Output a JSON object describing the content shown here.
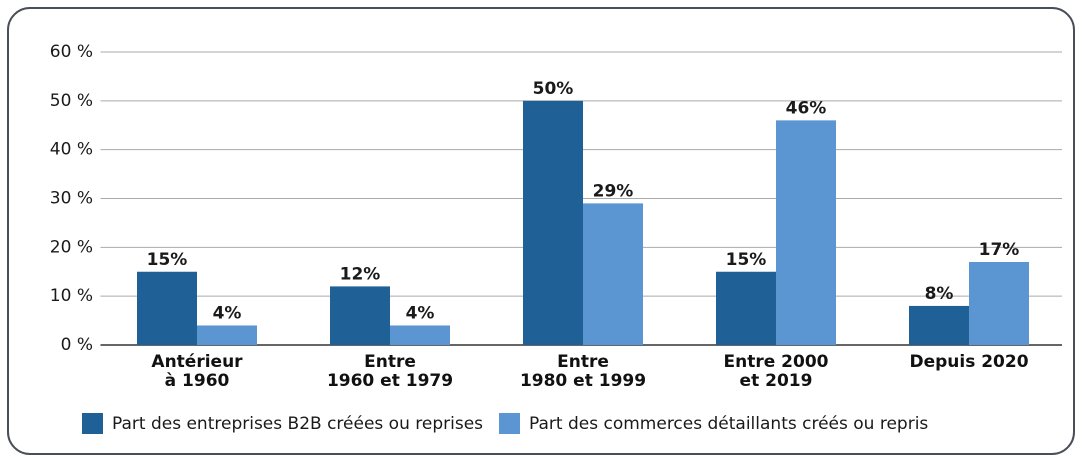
{
  "chart_data": {
    "type": "bar",
    "categories": [
      "Antérieur\nà 1960",
      "Entre\n1960 et 1979",
      "Entre\n1980 et 1999",
      "Entre 2000\net 2019",
      "Depuis 2020"
    ],
    "series": [
      {
        "name": "Part des entreprises B2B créées ou reprises",
        "color": "#1f6096",
        "values": [
          15,
          12,
          50,
          15,
          8
        ],
        "value_labels": [
          "15%",
          "12%",
          "50%",
          "15%",
          "8%"
        ]
      },
      {
        "name": "Part des commerces détaillants créés ou repris",
        "color": "#5b96d2",
        "values": [
          4,
          4,
          29,
          46,
          17
        ],
        "value_labels": [
          "4%",
          "4%",
          "29%",
          "46%",
          "17%"
        ]
      }
    ],
    "ylim": [
      0,
      60
    ],
    "yticks": [
      {
        "value": 0,
        "label": "0 %"
      },
      {
        "value": 10,
        "label": "10 %"
      },
      {
        "value": 20,
        "label": "20 %"
      },
      {
        "value": 30,
        "label": "30 %"
      },
      {
        "value": 40,
        "label": "40 %"
      },
      {
        "value": 50,
        "label": "50 %"
      },
      {
        "value": 60,
        "label": "60 %"
      }
    ],
    "grid": true,
    "legend": "bottom"
  }
}
